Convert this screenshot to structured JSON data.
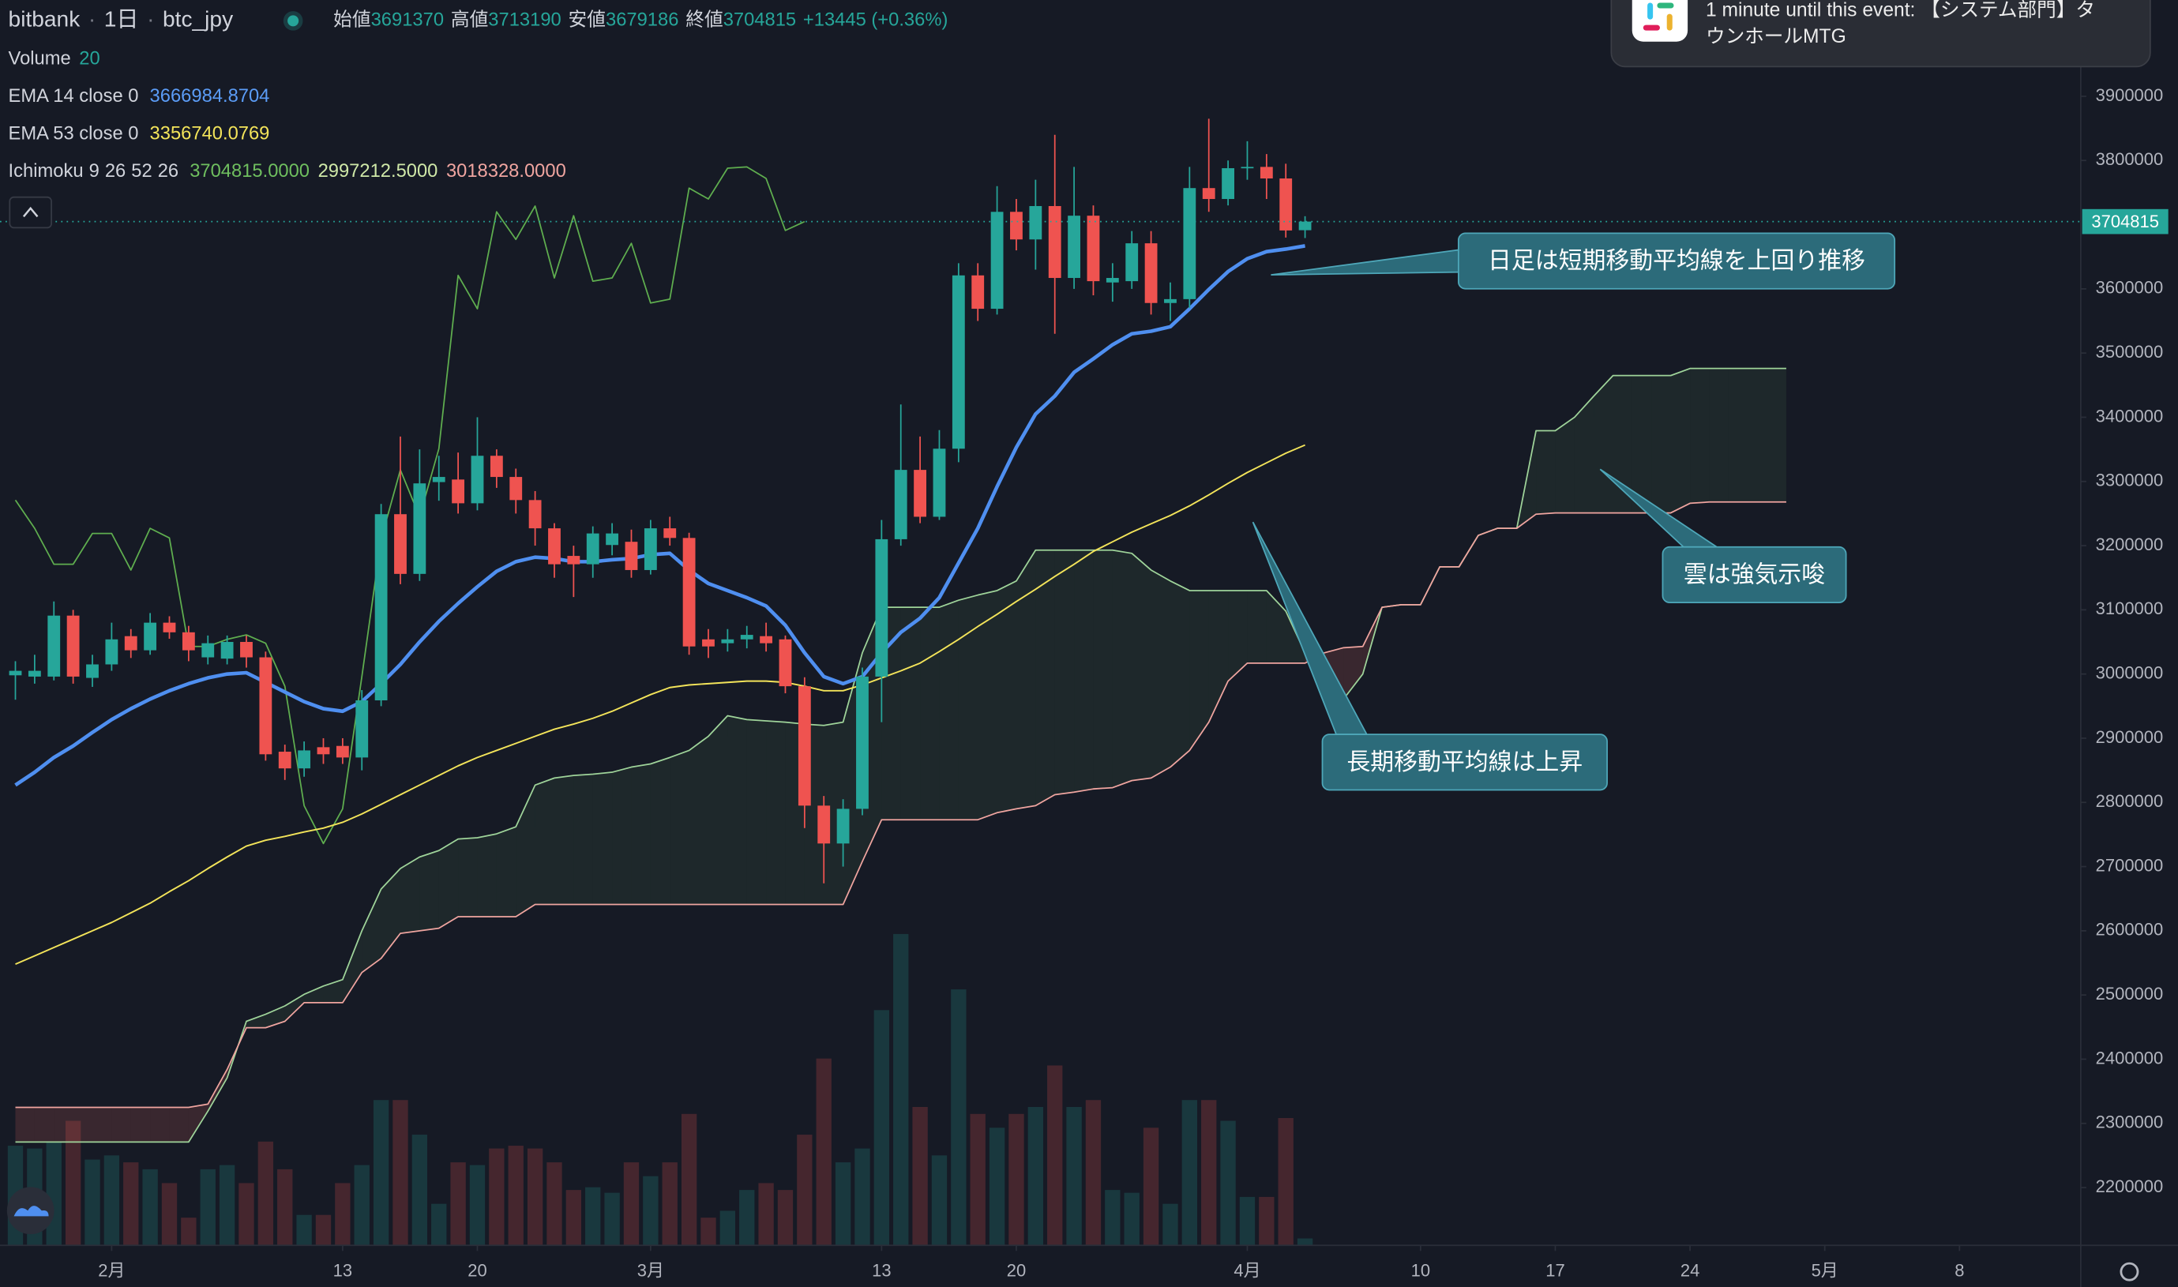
{
  "chart_data": {
    "type": "candlestick",
    "header": {
      "exchange": "bitbank",
      "interval": "1日",
      "symbol": "btc_jpy",
      "ohlc_labels": [
        "始値",
        "高値",
        "安値",
        "終値"
      ],
      "change": "+13445 (+0.36%)"
    },
    "up_color": "#26a69a",
    "down_color": "#ef5350",
    "open": [
      2998000,
      2996000,
      2996000,
      3091000,
      2994000,
      3015000,
      3059000,
      3037000,
      3080000,
      3065000,
      3026000,
      3024000,
      3050000,
      3026000,
      2879000,
      2853000,
      2886000,
      2888000,
      2870000,
      2959000,
      3249000,
      3156000,
      3299000,
      3303000,
      3266000,
      3340000,
      3307000,
      3271000,
      3227000,
      3184000,
      3171000,
      3201000,
      3206000,
      3162000,
      3227000,
      3212000,
      3054000,
      3048000,
      3054000,
      3059000,
      3054000,
      2981000,
      2795000,
      2736000,
      2790000,
      2996000,
      3210000,
      3318000,
      3245000,
      3351000,
      3621000,
      3569000,
      3720000,
      3677000,
      3729000,
      3617000,
      3714000,
      3610000,
      3612000,
      3671000,
      3578000,
      3584000,
      3757000,
      3740000,
      3788000,
      3790000,
      3772000,
      3691370
    ],
    "high": [
      3020000,
      3030000,
      3113000,
      3100000,
      3030000,
      3080000,
      3070000,
      3095000,
      3090000,
      3075000,
      3060000,
      3060000,
      3060000,
      3035000,
      2890000,
      2895000,
      2900000,
      2900000,
      2975000,
      3265000,
      3370000,
      3350000,
      3340000,
      3345000,
      3400000,
      3350000,
      3320000,
      3285000,
      3235000,
      3200000,
      3230000,
      3235000,
      3225000,
      3240000,
      3245000,
      3220000,
      3070000,
      3070000,
      3075000,
      3080000,
      3060000,
      2995000,
      2810000,
      2805000,
      3010000,
      3240000,
      3420000,
      3370000,
      3380000,
      3640000,
      3640000,
      3760000,
      3740000,
      3770000,
      3840000,
      3790000,
      3730000,
      3640000,
      3690000,
      3690000,
      3610000,
      3790000,
      3865000,
      3800000,
      3830000,
      3810000,
      3795000,
      3713190
    ],
    "low": [
      2960000,
      2985000,
      2990000,
      2985000,
      2980000,
      3005000,
      3025000,
      3030000,
      3055000,
      3020000,
      3015000,
      3015000,
      3010000,
      2865000,
      2835000,
      2840000,
      2860000,
      2860000,
      2850000,
      2950000,
      3140000,
      3145000,
      3270000,
      3250000,
      3255000,
      3290000,
      3250000,
      3200000,
      3150000,
      3120000,
      3150000,
      3185000,
      3150000,
      3155000,
      3200000,
      3030000,
      3025000,
      3035000,
      3040000,
      3035000,
      2970000,
      2760000,
      2674000,
      2700000,
      2780000,
      2925000,
      3200000,
      3235000,
      3240000,
      3330000,
      3550000,
      3560000,
      3660000,
      3630000,
      3530000,
      3600000,
      3590000,
      3580000,
      3600000,
      3560000,
      3550000,
      3570000,
      3720000,
      3730000,
      3770000,
      3740000,
      3680000,
      3679186
    ],
    "close": [
      3005000,
      3005000,
      3091000,
      2996000,
      3015000,
      3054000,
      3037000,
      3080000,
      3065000,
      3037000,
      3048000,
      3050000,
      3026000,
      2875000,
      2853000,
      2881000,
      2875000,
      2870000,
      2959000,
      3249000,
      3156000,
      3297000,
      3307000,
      3266000,
      3340000,
      3307000,
      3271000,
      3227000,
      3171000,
      3171000,
      3219000,
      3219000,
      3162000,
      3227000,
      3212000,
      3043000,
      3043000,
      3054000,
      3061000,
      3048000,
      2981000,
      2795000,
      2736000,
      2790000,
      2996000,
      3210000,
      3318000,
      3245000,
      3351000,
      3621000,
      3569000,
      3720000,
      3677000,
      3729000,
      3617000,
      3714000,
      3612000,
      3617000,
      3671000,
      3578000,
      3584000,
      3757000,
      3740000,
      3788000,
      3790000,
      3772000,
      3691000,
      3704815
    ],
    "volume": {
      "name": "Volume",
      "length": 20,
      "ylim": [
        0,
        900
      ],
      "values": [
        72,
        70,
        75,
        90,
        62,
        65,
        60,
        55,
        45,
        20,
        55,
        58,
        45,
        75,
        55,
        22,
        22,
        45,
        58,
        105,
        105,
        80,
        30,
        60,
        58,
        70,
        72,
        70,
        60,
        40,
        42,
        38,
        60,
        50,
        60,
        95,
        20,
        25,
        40,
        45,
        40,
        80,
        135,
        60,
        70,
        170,
        225,
        100,
        65,
        185,
        95,
        85,
        95,
        100,
        130,
        100,
        105,
        40,
        38,
        85,
        30,
        105,
        105,
        90,
        35,
        35,
        92,
        5
      ]
    },
    "ema": [
      {
        "name": "EMA 14 close 0",
        "color": "#4f8ff0",
        "values": [
          2827000,
          2847000,
          2870000,
          2888000,
          2909000,
          2929000,
          2946000,
          2961000,
          2974000,
          2985000,
          2994000,
          3000000,
          3002000,
          2987000,
          2972000,
          2957000,
          2946000,
          2942000,
          2957000,
          2985000,
          3015000,
          3050000,
          3082000,
          3110000,
          3136000,
          3160000,
          3175000,
          3182000,
          3180000,
          3175000,
          3175000,
          3178000,
          3180000,
          3186000,
          3188000,
          3162000,
          3141000,
          3130000,
          3119000,
          3106000,
          3076000,
          3033000,
          2996000,
          2985000,
          2996000,
          3033000,
          3065000,
          3087000,
          3119000,
          3173000,
          3227000,
          3292000,
          3353000,
          3405000,
          3433000,
          3470000,
          3491000,
          3513000,
          3530000,
          3534000,
          3541000,
          3569000,
          3599000,
          3627000,
          3647000,
          3658000,
          3662000,
          3666984.8704
        ]
      },
      {
        "name": "EMA 53 close 0",
        "color": "#f3e45a",
        "values": [
          2548000,
          2561000,
          2574000,
          2587000,
          2600000,
          2613000,
          2628000,
          2643000,
          2661000,
          2678000,
          2697000,
          2715000,
          2732000,
          2741000,
          2747000,
          2754000,
          2760000,
          2769000,
          2782000,
          2797000,
          2812000,
          2827000,
          2842000,
          2857000,
          2870000,
          2881000,
          2892000,
          2903000,
          2914000,
          2922000,
          2931000,
          2942000,
          2955000,
          2968000,
          2979000,
          2983000,
          2985000,
          2987000,
          2989000,
          2989000,
          2987000,
          2981000,
          2974000,
          2974000,
          2983000,
          2994000,
          3005000,
          3017000,
          3035000,
          3054000,
          3074000,
          3093000,
          3113000,
          3132000,
          3152000,
          3171000,
          3191000,
          3206000,
          3221000,
          3234000,
          3247000,
          3262000,
          3279000,
          3297000,
          3314000,
          3329000,
          3344000,
          3356740.0769
        ]
      }
    ],
    "ichimoku": {
      "name": "Ichimoku",
      "params": [
        9,
        26,
        52,
        26
      ],
      "legend_values": [
        "3704815.0000",
        "2997212.5000",
        "3018328.0000"
      ],
      "lagging_color": "#5fae4f",
      "span_a_color": "#9fd49a",
      "span_b_color": "#f0a5a0",
      "span_a": [
        2271000,
        2271000,
        2271000,
        2271000,
        2271000,
        2271000,
        2271000,
        2271000,
        2271000,
        2271000,
        2319000,
        2371000,
        2459000,
        2470000,
        2483000,
        2501000,
        2514000,
        2524000,
        2600000,
        2665000,
        2697000,
        2715000,
        2725000,
        2743000,
        2745000,
        2751000,
        2762000,
        2827000,
        2838000,
        2842000,
        2844000,
        2847000,
        2855000,
        2860000,
        2870000,
        2881000,
        2903000,
        2935000,
        2929000,
        2927000,
        2925000,
        2922000,
        2920000,
        2925000,
        3033000,
        3104000,
        3104000,
        3104000,
        3104000,
        3115000,
        3123000,
        3130000,
        3145000,
        3193000,
        3193000,
        3193000,
        3193000,
        3193000,
        3188000,
        3162000,
        3145000,
        3130000,
        3130000,
        3130000,
        3130000,
        3130000,
        3098000,
        3033000,
        2989000,
        2961000,
        3000000,
        3104000,
        3108000,
        3108000,
        3167000,
        3167000,
        3216000,
        3227000,
        3227000,
        3379000,
        3379000,
        3400000,
        3433000,
        3465000,
        3465000,
        3465000,
        3465000,
        3476000,
        3476000,
        3476000,
        3476000,
        3476000,
        3476000
      ],
      "span_b": [
        2325000,
        2325000,
        2325000,
        2325000,
        2325000,
        2325000,
        2325000,
        2325000,
        2325000,
        2325000,
        2330000,
        2384000,
        2449000,
        2449000,
        2459000,
        2488000,
        2488000,
        2488000,
        2535000,
        2557000,
        2596000,
        2600000,
        2604000,
        2622000,
        2622000,
        2622000,
        2622000,
        2641000,
        2641000,
        2641000,
        2641000,
        2641000,
        2641000,
        2641000,
        2641000,
        2641000,
        2641000,
        2641000,
        2641000,
        2641000,
        2641000,
        2641000,
        2641000,
        2641000,
        2708000,
        2773000,
        2773000,
        2773000,
        2773000,
        2773000,
        2773000,
        2784000,
        2790000,
        2795000,
        2812000,
        2816000,
        2821000,
        2823000,
        2834000,
        2838000,
        2855000,
        2881000,
        2925000,
        2989000,
        3017000,
        3017000,
        3017000,
        3017000,
        3033000,
        3041000,
        3043000,
        3104000,
        3108000,
        3108000,
        3167000,
        3167000,
        3216000,
        3227000,
        3227000,
        3249000,
        3251000,
        3251000,
        3251000,
        3251000,
        3251000,
        3251000,
        3251000,
        3266000,
        3268000,
        3268000,
        3268000,
        3268000,
        3268000
      ]
    },
    "xlim": [
      -0.8,
      107.3
    ],
    "xticks": [
      {
        "value": 5,
        "label": "2月"
      },
      {
        "value": 17,
        "label": "13"
      },
      {
        "value": 24,
        "label": "20"
      },
      {
        "value": 33,
        "label": "3月"
      },
      {
        "value": 45,
        "label": "13"
      },
      {
        "value": 52,
        "label": "20"
      },
      {
        "value": 64,
        "label": "4月"
      },
      {
        "value": 73,
        "label": "10"
      },
      {
        "value": 80,
        "label": "17"
      },
      {
        "value": 87,
        "label": "24"
      },
      {
        "value": 94,
        "label": "5月"
      },
      {
        "value": 101,
        "label": "8"
      }
    ],
    "ylim": [
      2110000,
      4050000
    ],
    "yticks": [
      2200000,
      2300000,
      2400000,
      2500000,
      2600000,
      2700000,
      2800000,
      2900000,
      3000000,
      3100000,
      3200000,
      3300000,
      3400000,
      3500000,
      3600000,
      3800000,
      3900000
    ],
    "annotations": [
      "日足は短期移動平均線を上回り推移",
      "雲は強気示唆",
      "長期移動平均線は上昇"
    ],
    "notification": {
      "lines": [
        "1 minute until this event: 【システム部門】タ",
        "ウンホールMTG"
      ]
    }
  }
}
